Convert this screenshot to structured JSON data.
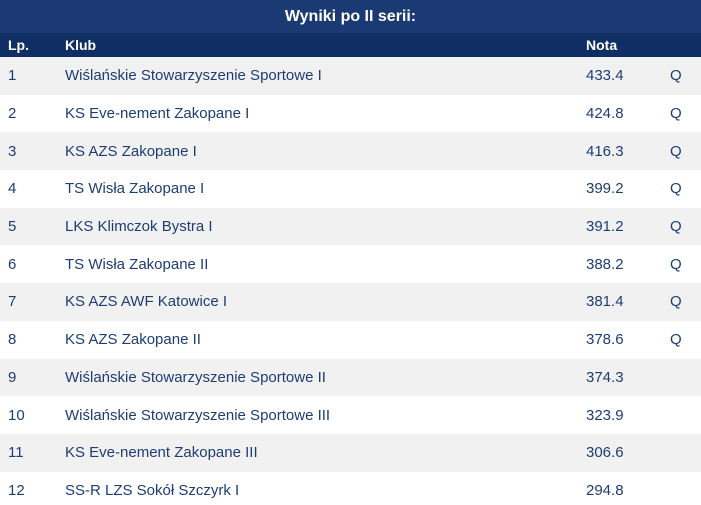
{
  "title": "Wyniki po II serii:",
  "headers": {
    "lp": "Lp.",
    "club": "Klub",
    "score": "Nota",
    "q": ""
  },
  "rows": [
    {
      "lp": "1",
      "club": "Wiślańskie Stowarzyszenie Sportowe I",
      "score": "433.4",
      "q": "Q"
    },
    {
      "lp": "2",
      "club": "KS Eve-nement Zakopane I",
      "score": "424.8",
      "q": "Q"
    },
    {
      "lp": "3",
      "club": "KS AZS Zakopane I",
      "score": "416.3",
      "q": "Q"
    },
    {
      "lp": "4",
      "club": "TS Wisła Zakopane I",
      "score": "399.2",
      "q": "Q"
    },
    {
      "lp": "5",
      "club": "LKS Klimczok Bystra I",
      "score": "391.2",
      "q": "Q"
    },
    {
      "lp": "6",
      "club": "TS Wisła Zakopane II",
      "score": "388.2",
      "q": "Q"
    },
    {
      "lp": "7",
      "club": "KS AZS AWF Katowice I",
      "score": "381.4",
      "q": "Q"
    },
    {
      "lp": "8",
      "club": "KS AZS Zakopane II",
      "score": "378.6",
      "q": "Q"
    },
    {
      "lp": "9",
      "club": "Wiślańskie Stowarzyszenie Sportowe II",
      "score": "374.3",
      "q": ""
    },
    {
      "lp": "10",
      "club": "Wiślańskie Stowarzyszenie Sportowe III",
      "score": "323.9",
      "q": ""
    },
    {
      "lp": "11",
      "club": "KS Eve-nement Zakopane III",
      "score": "306.6",
      "q": ""
    },
    {
      "lp": "12",
      "club": "SS-R LZS Sokół Szczyrk I",
      "score": "294.8",
      "q": ""
    }
  ],
  "colors": {
    "title_bg": "#1b3a73",
    "header_bg": "#0f2e63",
    "row_alt_bg": "#f1f1f1",
    "text": "#1e3d73"
  }
}
